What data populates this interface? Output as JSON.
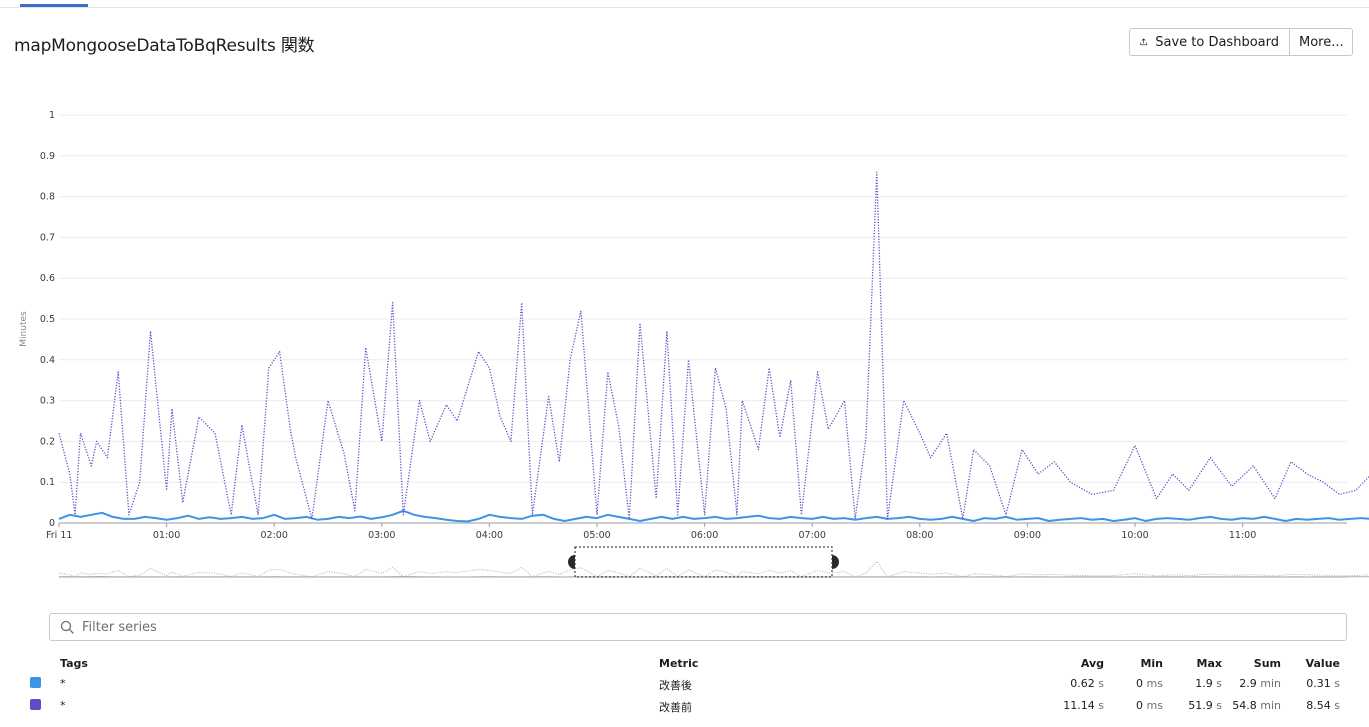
{
  "header": {
    "title": "mapMongooseDataToBqResults 関数",
    "save_label": "Save to Dashboard",
    "more_label": "More..."
  },
  "colors": {
    "series_after": "#3b94e6",
    "series_before": "#5f4bc7",
    "accent": "#3a6fc7",
    "overview": "#aeb0b8"
  },
  "chart_data": {
    "type": "line",
    "ylabel": "Minutes",
    "ylim": [
      0,
      1
    ],
    "y_ticks": [
      "0",
      "0.1",
      "0.2",
      "0.3",
      "0.4",
      "0.5",
      "0.6",
      "0.7",
      "0.8",
      "0.9",
      "1"
    ],
    "x_ticks": [
      "Fri 11",
      "01:00",
      "02:00",
      "03:00",
      "04:00",
      "05:00",
      "06:00",
      "07:00",
      "08:00",
      "09:00",
      "10:00",
      "11:00"
    ],
    "x_range_hours": [
      0,
      12.6
    ],
    "series": [
      {
        "name": "改善後",
        "style": "solid",
        "x": [
          0,
          0.1,
          0.2,
          0.3,
          0.4,
          0.5,
          0.6,
          0.7,
          0.8,
          0.9,
          1.0,
          1.1,
          1.2,
          1.3,
          1.4,
          1.5,
          1.6,
          1.7,
          1.8,
          1.9,
          2.0,
          2.1,
          2.2,
          2.3,
          2.4,
          2.5,
          2.6,
          2.7,
          2.8,
          2.9,
          3.0,
          3.1,
          3.2,
          3.3,
          3.4,
          3.5,
          3.6,
          3.7,
          3.8,
          3.9,
          4.0,
          4.1,
          4.2,
          4.3,
          4.4,
          4.5,
          4.6,
          4.7,
          4.8,
          4.9,
          5.0,
          5.1,
          5.2,
          5.3,
          5.4,
          5.5,
          5.6,
          5.7,
          5.8,
          5.9,
          6.0,
          6.1,
          6.2,
          6.3,
          6.4,
          6.5,
          6.6,
          6.7,
          6.8,
          6.9,
          7.0,
          7.1,
          7.2,
          7.3,
          7.4,
          7.5,
          7.6,
          7.7,
          7.8,
          7.9,
          8.0,
          8.1,
          8.2,
          8.3,
          8.4,
          8.5,
          8.6,
          8.7,
          8.8,
          8.9,
          9.0,
          9.1,
          9.2,
          9.3,
          9.4,
          9.5,
          9.6,
          9.7,
          9.8,
          9.9,
          10.0,
          10.1,
          10.2,
          10.3,
          10.4,
          10.5,
          10.6,
          10.7,
          10.8,
          10.9,
          11.0,
          11.1,
          11.2,
          11.3,
          11.4,
          11.5,
          11.6,
          11.7,
          11.8,
          11.9,
          12.0,
          12.1,
          12.2,
          12.3,
          12.4,
          12.5,
          12.6
        ],
        "y": [
          0.01,
          0.02,
          0.015,
          0.02,
          0.025,
          0.015,
          0.01,
          0.01,
          0.015,
          0.012,
          0.008,
          0.012,
          0.018,
          0.01,
          0.014,
          0.01,
          0.012,
          0.015,
          0.01,
          0.012,
          0.02,
          0.01,
          0.012,
          0.015,
          0.008,
          0.01,
          0.015,
          0.012,
          0.016,
          0.01,
          0.014,
          0.02,
          0.03,
          0.02,
          0.015,
          0.012,
          0.008,
          0.005,
          0.004,
          0.01,
          0.02,
          0.015,
          0.012,
          0.01,
          0.018,
          0.02,
          0.01,
          0.005,
          0.01,
          0.015,
          0.012,
          0.02,
          0.015,
          0.01,
          0.005,
          0.01,
          0.015,
          0.01,
          0.015,
          0.01,
          0.012,
          0.015,
          0.01,
          0.012,
          0.015,
          0.018,
          0.012,
          0.01,
          0.015,
          0.012,
          0.01,
          0.015,
          0.01,
          0.012,
          0.008,
          0.012,
          0.015,
          0.01,
          0.012,
          0.015,
          0.01,
          0.008,
          0.01,
          0.015,
          0.01,
          0.005,
          0.012,
          0.01,
          0.015,
          0.008,
          0.01,
          0.012,
          0.005,
          0.008,
          0.01,
          0.012,
          0.008,
          0.01,
          0.005,
          0.008,
          0.012,
          0.005,
          0.01,
          0.012,
          0.01,
          0.008,
          0.012,
          0.015,
          0.01,
          0.008,
          0.012,
          0.01,
          0.015,
          0.01,
          0.005,
          0.01,
          0.008,
          0.01,
          0.012,
          0.008,
          0.01,
          0.012,
          0.01,
          0.02,
          0.01,
          0.012,
          0.015
        ]
      },
      {
        "name": "改善前",
        "style": "dotted",
        "x": [
          0,
          0.1,
          0.15,
          0.2,
          0.3,
          0.35,
          0.45,
          0.55,
          0.65,
          0.75,
          0.85,
          1.0,
          1.05,
          1.15,
          1.3,
          1.45,
          1.6,
          1.7,
          1.85,
          1.95,
          2.05,
          2.15,
          2.2,
          2.35,
          2.5,
          2.65,
          2.75,
          2.85,
          3.0,
          3.1,
          3.2,
          3.35,
          3.45,
          3.6,
          3.7,
          3.9,
          4.0,
          4.1,
          4.2,
          4.3,
          4.4,
          4.55,
          4.65,
          4.75,
          4.85,
          5.0,
          5.1,
          5.2,
          5.3,
          5.4,
          5.55,
          5.65,
          5.75,
          5.85,
          6.0,
          6.1,
          6.2,
          6.3,
          6.35,
          6.5,
          6.6,
          6.7,
          6.8,
          6.9,
          7.05,
          7.15,
          7.3,
          7.4,
          7.5,
          7.6,
          7.7,
          7.85,
          8.0,
          8.1,
          8.25,
          8.4,
          8.5,
          8.65,
          8.8,
          8.95,
          9.1,
          9.25,
          9.4,
          9.6,
          9.8,
          10.0,
          10.2,
          10.35,
          10.5,
          10.7,
          10.9,
          11.1,
          11.3,
          11.45,
          11.6,
          11.75,
          11.9,
          12.05,
          12.2,
          12.35,
          12.45,
          12.6
        ],
        "y": [
          0.22,
          0.12,
          0.02,
          0.22,
          0.14,
          0.2,
          0.16,
          0.37,
          0.02,
          0.1,
          0.47,
          0.08,
          0.28,
          0.05,
          0.26,
          0.22,
          0.02,
          0.24,
          0.02,
          0.38,
          0.42,
          0.23,
          0.16,
          0.01,
          0.3,
          0.17,
          0.03,
          0.43,
          0.2,
          0.54,
          0.02,
          0.3,
          0.2,
          0.29,
          0.25,
          0.42,
          0.38,
          0.26,
          0.2,
          0.54,
          0.02,
          0.31,
          0.15,
          0.4,
          0.52,
          0.02,
          0.37,
          0.24,
          0.01,
          0.49,
          0.06,
          0.47,
          0.02,
          0.4,
          0.02,
          0.38,
          0.28,
          0.02,
          0.3,
          0.18,
          0.38,
          0.21,
          0.35,
          0.02,
          0.37,
          0.23,
          0.3,
          0.01,
          0.21,
          0.86,
          0.01,
          0.3,
          0.22,
          0.16,
          0.22,
          0.01,
          0.18,
          0.14,
          0.02,
          0.18,
          0.12,
          0.15,
          0.1,
          0.07,
          0.08,
          0.19,
          0.06,
          0.12,
          0.08,
          0.16,
          0.09,
          0.14,
          0.06,
          0.15,
          0.12,
          0.1,
          0.07,
          0.08,
          0.12,
          0.06,
          0.1,
          0.01
        ]
      }
    ]
  },
  "filter": {
    "placeholder": "Filter series"
  },
  "legend": {
    "headers": {
      "tags": "Tags",
      "metric": "Metric",
      "avg": "Avg",
      "min": "Min",
      "max": "Max",
      "sum": "Sum",
      "value": "Value"
    },
    "rows": [
      {
        "color": "#3b94e6",
        "tags": "*",
        "metric": "改善後",
        "avg": "0.62",
        "avg_unit": "s",
        "min": "0",
        "min_unit": "ms",
        "max": "1.9",
        "max_unit": "s",
        "sum": "2.9",
        "sum_unit": "min",
        "value": "0.31",
        "value_unit": "s"
      },
      {
        "color": "#5f4bc7",
        "tags": "*",
        "metric": "改善前",
        "avg": "11.14",
        "avg_unit": "s",
        "min": "0",
        "min_unit": "ms",
        "max": "51.9",
        "max_unit": "s",
        "sum": "54.8",
        "sum_unit": "min",
        "value": "8.54",
        "value_unit": "s"
      }
    ]
  }
}
